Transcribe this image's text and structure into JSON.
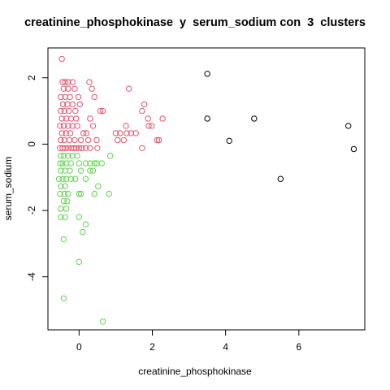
{
  "chart_data": {
    "type": "scatter",
    "title": "creatinine_phosphokinase  y  serum_sodium con  3  clusters",
    "xlabel": "creatinine_phosphokinase",
    "ylabel": "serum_sodium",
    "xlim": [
      -0.85,
      7.8
    ],
    "ylim": [
      -5.6,
      2.9
    ],
    "x_ticks": [
      0,
      2,
      4,
      6
    ],
    "y_ticks": [
      -4,
      -2,
      0,
      2
    ],
    "grid": false,
    "series": [
      {
        "color": "#DF536B",
        "points": [
          [
            -0.47,
            2.57
          ],
          [
            -0.45,
            1.87
          ],
          [
            -0.38,
            1.87
          ],
          [
            -0.3,
            1.87
          ],
          [
            -0.18,
            1.87
          ],
          [
            0.28,
            1.87
          ],
          [
            -0.42,
            1.67
          ],
          [
            -0.3,
            1.67
          ],
          [
            -0.12,
            1.67
          ],
          [
            0.35,
            1.67
          ],
          [
            1.36,
            1.67
          ],
          [
            -0.5,
            1.42
          ],
          [
            -0.38,
            1.42
          ],
          [
            -0.25,
            1.42
          ],
          [
            -0.02,
            1.42
          ],
          [
            0.42,
            1.42
          ],
          [
            -0.44,
            1.2
          ],
          [
            -0.32,
            1.2
          ],
          [
            -0.18,
            1.2
          ],
          [
            0.02,
            1.2
          ],
          [
            1.78,
            1.2
          ],
          [
            -0.5,
            1.0
          ],
          [
            -0.4,
            1.0
          ],
          [
            -0.28,
            1.0
          ],
          [
            -0.1,
            1.0
          ],
          [
            0.58,
            1.0
          ],
          [
            0.65,
            1.0
          ],
          [
            1.72,
            1.0
          ],
          [
            -0.47,
            0.77
          ],
          [
            -0.35,
            0.77
          ],
          [
            -0.22,
            0.77
          ],
          [
            -0.08,
            0.77
          ],
          [
            0.3,
            0.77
          ],
          [
            1.88,
            0.77
          ],
          [
            2.28,
            0.77
          ],
          [
            -0.52,
            0.55
          ],
          [
            -0.42,
            0.55
          ],
          [
            -0.3,
            0.55
          ],
          [
            -0.18,
            0.55
          ],
          [
            -0.05,
            0.55
          ],
          [
            0.38,
            0.55
          ],
          [
            1.28,
            0.55
          ],
          [
            1.9,
            0.55
          ],
          [
            1.98,
            0.55
          ],
          [
            -0.47,
            0.33
          ],
          [
            -0.36,
            0.33
          ],
          [
            -0.24,
            0.33
          ],
          [
            0.12,
            0.33
          ],
          [
            0.2,
            0.33
          ],
          [
            1.0,
            0.33
          ],
          [
            1.12,
            0.33
          ],
          [
            1.3,
            0.33
          ],
          [
            1.42,
            0.33
          ],
          [
            1.55,
            0.33
          ],
          [
            -0.5,
            0.12
          ],
          [
            -0.4,
            0.12
          ],
          [
            -0.27,
            0.12
          ],
          [
            -0.12,
            0.12
          ],
          [
            0.05,
            0.12
          ],
          [
            0.25,
            0.12
          ],
          [
            0.48,
            0.12
          ],
          [
            1.05,
            0.12
          ],
          [
            1.22,
            0.12
          ],
          [
            2.13,
            0.12
          ],
          [
            2.18,
            0.12
          ],
          [
            -0.52,
            -0.12
          ],
          [
            -0.45,
            -0.12
          ],
          [
            -0.38,
            -0.12
          ],
          [
            -0.3,
            -0.12
          ],
          [
            -0.22,
            -0.12
          ],
          [
            -0.15,
            -0.12
          ],
          [
            -0.08,
            -0.12
          ],
          [
            0.0,
            -0.12
          ],
          [
            0.08,
            -0.12
          ],
          [
            0.18,
            -0.12
          ],
          [
            0.3,
            -0.12
          ],
          [
            0.5,
            -0.12
          ],
          [
            1.72,
            -0.12
          ]
        ]
      },
      {
        "color": "#61D04F",
        "points": [
          [
            -0.5,
            -0.35
          ],
          [
            -0.42,
            -0.35
          ],
          [
            -0.3,
            -0.35
          ],
          [
            -0.18,
            -0.35
          ],
          [
            -0.05,
            -0.35
          ],
          [
            0.85,
            -0.35
          ],
          [
            -0.52,
            -0.58
          ],
          [
            -0.45,
            -0.58
          ],
          [
            -0.35,
            -0.58
          ],
          [
            -0.22,
            -0.58
          ],
          [
            0.0,
            -0.58
          ],
          [
            0.18,
            -0.58
          ],
          [
            0.3,
            -0.58
          ],
          [
            0.42,
            -0.58
          ],
          [
            0.48,
            -0.58
          ],
          [
            0.62,
            -0.58
          ],
          [
            -0.5,
            -0.8
          ],
          [
            -0.38,
            -0.8
          ],
          [
            -0.25,
            -0.8
          ],
          [
            0.05,
            -0.8
          ],
          [
            0.3,
            -0.8
          ],
          [
            0.38,
            -0.8
          ],
          [
            -0.55,
            -1.05
          ],
          [
            -0.45,
            -1.05
          ],
          [
            -0.35,
            -1.05
          ],
          [
            -0.22,
            -1.05
          ],
          [
            -0.1,
            -1.05
          ],
          [
            0.18,
            -1.05
          ],
          [
            -0.5,
            -1.27
          ],
          [
            -0.38,
            -1.27
          ],
          [
            0.52,
            -1.27
          ],
          [
            -0.52,
            -1.5
          ],
          [
            -0.4,
            -1.5
          ],
          [
            -0.3,
            -1.5
          ],
          [
            0.0,
            -1.5
          ],
          [
            0.05,
            -1.5
          ],
          [
            0.42,
            -1.5
          ],
          [
            0.82,
            -1.5
          ],
          [
            -0.42,
            -1.72
          ],
          [
            -0.32,
            -1.72
          ],
          [
            -0.5,
            -1.95
          ],
          [
            -0.35,
            -1.95
          ],
          [
            -0.5,
            -2.2
          ],
          [
            -0.38,
            -2.2
          ],
          [
            0.0,
            -2.2
          ],
          [
            0.18,
            -2.42
          ],
          [
            0.1,
            -2.65
          ],
          [
            -0.42,
            -2.87
          ],
          [
            0.0,
            -3.55
          ],
          [
            -0.42,
            -4.65
          ],
          [
            0.65,
            -5.35
          ]
        ]
      },
      {
        "color": "#000000",
        "points": [
          [
            3.5,
            2.12
          ],
          [
            3.5,
            0.77
          ],
          [
            4.78,
            0.77
          ],
          [
            7.35,
            0.55
          ],
          [
            4.1,
            0.1
          ],
          [
            7.5,
            -0.15
          ],
          [
            5.5,
            -1.05
          ]
        ]
      }
    ]
  }
}
